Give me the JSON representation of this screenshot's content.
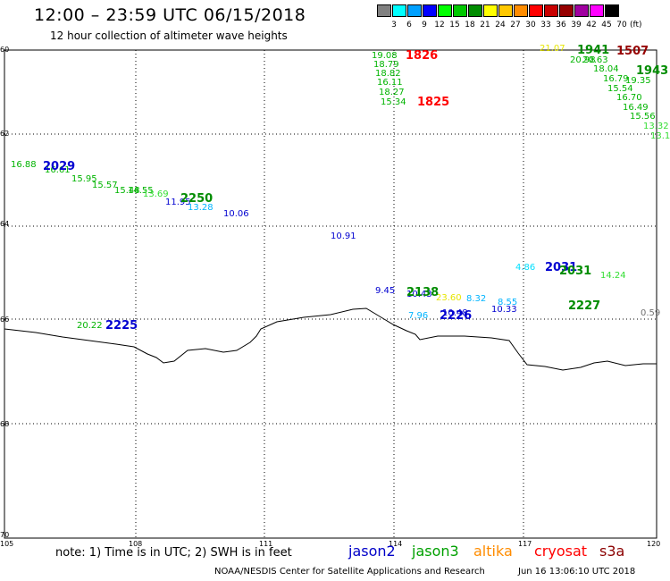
{
  "header": {
    "title": "12:00 – 23:59 UTC 06/15/2018",
    "subtitle": "12 hour collection of altimeter wave heights"
  },
  "colorbar": {
    "unit": "(ft)",
    "levels": [
      {
        "label": "3",
        "color": "#808080"
      },
      {
        "label": "6",
        "color": "#00ffff"
      },
      {
        "label": "9",
        "color": "#00a0ff"
      },
      {
        "label": "12",
        "color": "#0000ff"
      },
      {
        "label": "15",
        "color": "#00ff00"
      },
      {
        "label": "18",
        "color": "#00c800"
      },
      {
        "label": "21",
        "color": "#008c00"
      },
      {
        "label": "24",
        "color": "#ffff00"
      },
      {
        "label": "27",
        "color": "#ffc800"
      },
      {
        "label": "30",
        "color": "#ff8c00"
      },
      {
        "label": "33",
        "color": "#ff0000"
      },
      {
        "label": "36",
        "color": "#c80000"
      },
      {
        "label": "39",
        "color": "#960000"
      },
      {
        "label": "42",
        "color": "#a000a0"
      },
      {
        "label": "45",
        "color": "#ff00ff"
      },
      {
        "label": "70",
        "color": "#000000"
      }
    ]
  },
  "map": {
    "y_labels": [
      "60",
      "62",
      "64",
      "66",
      "68",
      "70"
    ],
    "x_labels": [
      "105",
      "108",
      "111",
      "114",
      "117",
      "120"
    ]
  },
  "observations": [
    {
      "t": "19.08",
      "c": "#00b400"
    },
    {
      "t": "18.79",
      "c": "#00b400"
    },
    {
      "t": "18.82",
      "c": "#00b400"
    },
    {
      "t": "16.11",
      "c": "#00b400"
    },
    {
      "t": "18.27",
      "c": "#00b400"
    },
    {
      "t": "15.34",
      "c": "#00b400"
    },
    {
      "t": "21.07",
      "c": "#e6e600"
    },
    {
      "t": "20.98",
      "c": "#00b400"
    },
    {
      "t": "20.63",
      "c": "#00b400"
    },
    {
      "t": "18.04",
      "c": "#00b400"
    },
    {
      "t": "19.35",
      "c": "#00b400"
    },
    {
      "t": "16.79",
      "c": "#00b400"
    },
    {
      "t": "15.54",
      "c": "#00b400"
    },
    {
      "t": "16.70",
      "c": "#00b400"
    },
    {
      "t": "16.49",
      "c": "#00b400"
    },
    {
      "t": "15.56",
      "c": "#00b400"
    },
    {
      "t": "13.32",
      "c": "#33dd33"
    },
    {
      "t": "13.1",
      "c": "#33dd33"
    },
    {
      "t": "16.88",
      "c": "#00b400"
    },
    {
      "t": "16.61",
      "c": "#00b400"
    },
    {
      "t": "15.95",
      "c": "#00b400"
    },
    {
      "t": "15.57",
      "c": "#00b400"
    },
    {
      "t": "15.48",
      "c": "#00b400"
    },
    {
      "t": "14.55",
      "c": "#00b400"
    },
    {
      "t": "13.69",
      "c": "#33dd33"
    },
    {
      "t": "11.95",
      "c": "#0000d0"
    },
    {
      "t": "13.28",
      "c": "#00b4ff"
    },
    {
      "t": "10.06",
      "c": "#0000d0"
    },
    {
      "t": "10.91",
      "c": "#0000d0"
    },
    {
      "t": "9.45",
      "c": "#0000d0"
    },
    {
      "t": "10.43",
      "c": "#0000d0"
    },
    {
      "t": "23.60",
      "c": "#e6e600"
    },
    {
      "t": "8.32",
      "c": "#00b4ff"
    },
    {
      "t": "8.55",
      "c": "#00b4ff"
    },
    {
      "t": "7.96",
      "c": "#00b4ff"
    },
    {
      "t": "10.48",
      "c": "#0000d0"
    },
    {
      "t": "10.33",
      "c": "#0000d0"
    },
    {
      "t": "4.86",
      "c": "#00e0ff"
    },
    {
      "t": "14.24",
      "c": "#33dd33"
    },
    {
      "t": "0.59",
      "c": "#707070"
    },
    {
      "t": "20.22",
      "c": "#00b400"
    }
  ],
  "time_tags": [
    {
      "t": "1826",
      "c": "#ff0000"
    },
    {
      "t": "1825",
      "c": "#ff0000"
    },
    {
      "t": "1941",
      "c": "#008c00"
    },
    {
      "t": "1507",
      "c": "#960000"
    },
    {
      "t": "1943",
      "c": "#008c00"
    },
    {
      "t": "2029",
      "c": "#0000d0"
    },
    {
      "t": "2250",
      "c": "#008c00"
    },
    {
      "t": "2031",
      "c": "#0000d0"
    },
    {
      "t": "2031",
      "c": "#008c00"
    },
    {
      "t": "2138",
      "c": "#008c00"
    },
    {
      "t": "2226",
      "c": "#0000d0"
    },
    {
      "t": "2227",
      "c": "#008c00"
    },
    {
      "t": "2225",
      "c": "#0000d0"
    }
  ],
  "footer": {
    "note": "note:  1) Time is in UTC;  2) SWH is in feet",
    "legend": [
      {
        "name": "jason2",
        "color": "#0000c8"
      },
      {
        "name": "jason3",
        "color": "#00a000"
      },
      {
        "name": "altika",
        "color": "#ff8c00"
      },
      {
        "name": "cryosat",
        "color": "#ff0000"
      },
      {
        "name": "s3a",
        "color": "#8b0000"
      }
    ],
    "credit": "NOAA/NESDIS Center for Satellite Applications and Research",
    "stamp": "Jun 16 13:06:10 UTC 2018"
  }
}
